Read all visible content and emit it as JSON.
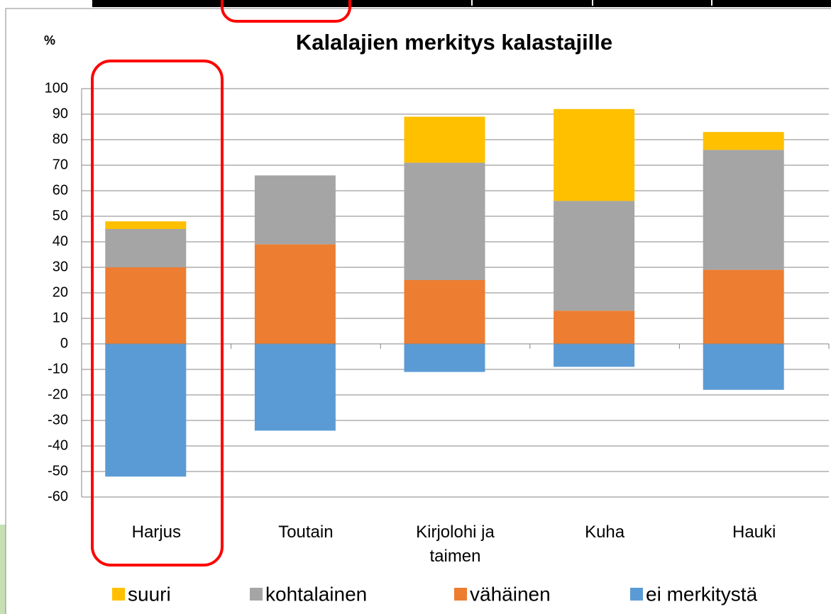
{
  "chart_data": {
    "type": "stacked_bar",
    "title": "Kalalajien merkitys kalastajille",
    "y_label": "%",
    "categories": [
      "Harjus",
      "Toutain",
      "Kirjolohi ja taimen",
      "Kuha",
      "Hauki"
    ],
    "series": [
      {
        "name": "suuri",
        "color": "#ffc000",
        "values": [
          3,
          0,
          18,
          36,
          7
        ]
      },
      {
        "name": "kohtalainen",
        "color": "#a5a5a5",
        "values": [
          15,
          27,
          46,
          43,
          47
        ]
      },
      {
        "name": "vähäinen",
        "color": "#ed7d31",
        "values": [
          30,
          39,
          25,
          13,
          29
        ]
      },
      {
        "name": "ei merkitystä",
        "color": "#5b9bd5",
        "values": [
          -52,
          -34,
          -11,
          -9,
          -18
        ]
      }
    ],
    "ylim": [
      -60,
      100
    ],
    "yticks": [
      100,
      90,
      80,
      70,
      60,
      50,
      40,
      30,
      20,
      10,
      0,
      -10,
      -20,
      -30,
      -40,
      -50,
      -60
    ],
    "grid": true,
    "legend": "bottom"
  }
}
